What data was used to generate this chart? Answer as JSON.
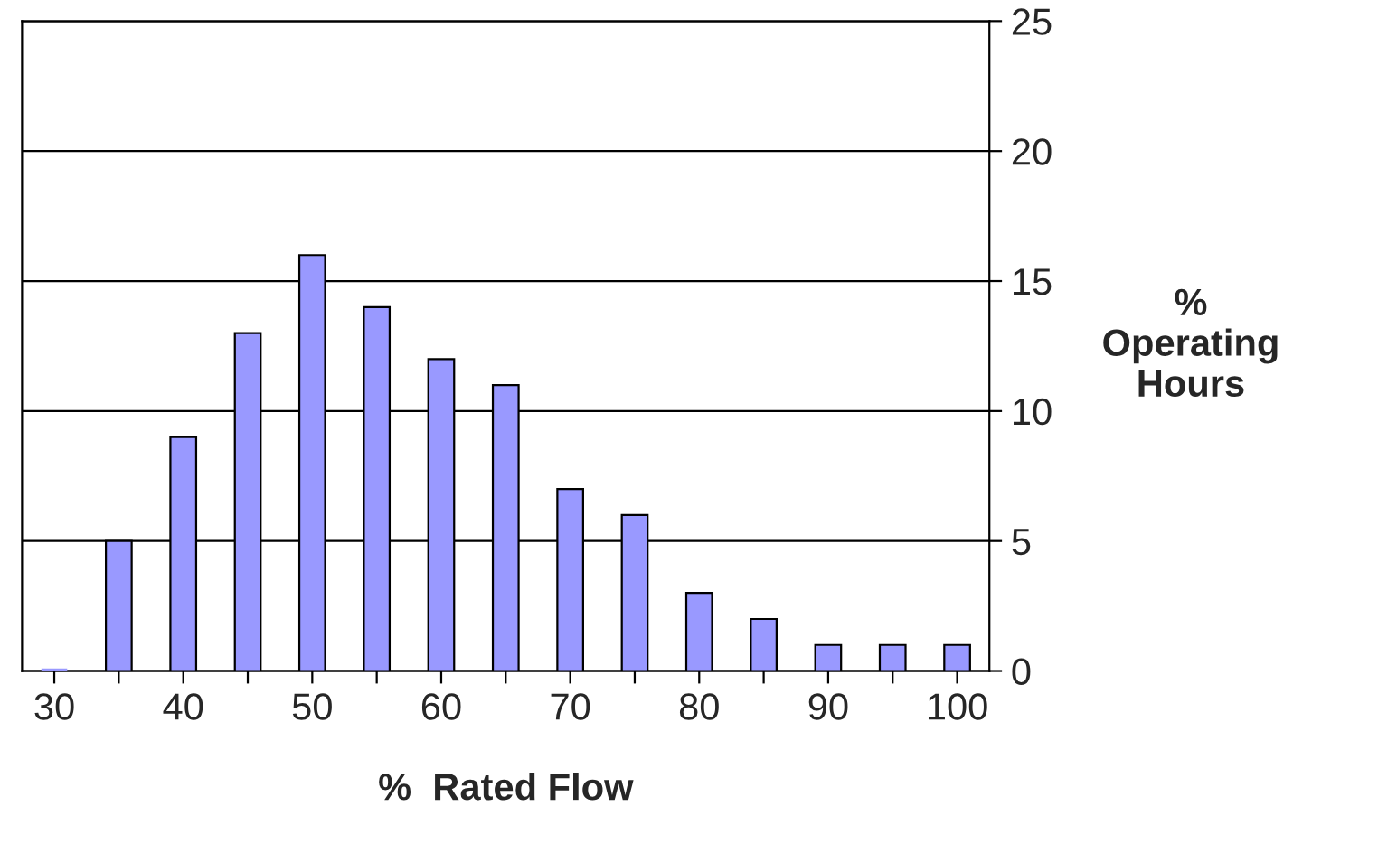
{
  "chart_data": {
    "type": "bar",
    "xlabel": "%  Rated Flow",
    "ylabel": "%\nOperating\nHours",
    "categories": [
      "30",
      null,
      "40",
      null,
      "50",
      null,
      "60",
      null,
      "70",
      null,
      "80",
      null,
      "90",
      null,
      "100"
    ],
    "values": [
      0,
      5,
      9,
      13,
      16,
      14,
      12,
      11,
      7,
      6,
      3,
      2,
      1,
      1,
      1
    ],
    "color": "#9999ff",
    "ylim": [
      0,
      25
    ],
    "yticks": [
      0,
      5,
      10,
      15,
      20,
      25
    ],
    "grid": "y",
    "legend": false
  }
}
